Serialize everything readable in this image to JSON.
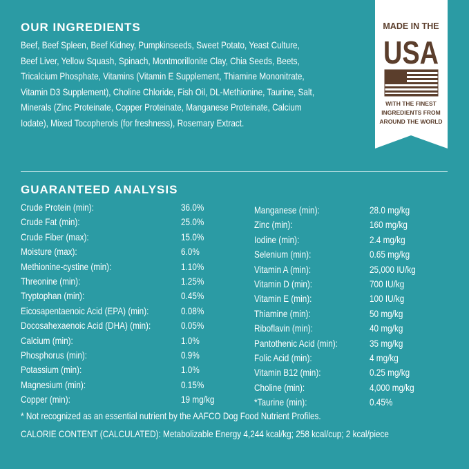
{
  "ingredients": {
    "title": "OUR INGREDIENTS",
    "lines": [
      "Beef, Beef Spleen, Beef Kidney, Pumpkinseeds, Sweet Potato, Yeast Culture,",
      "Beef Liver, Yellow Squash, Spinach, Montmorillonite Clay, Chia Seeds, Beets,",
      "Tricalcium Phosphate, Vitamins (Vitamin E Supplement, Thiamine Mononitrate,",
      "Vitamin D3 Supplement), Choline Chloride, Fish Oil, DL-Methionine, Taurine, Salt,",
      "Minerals (Zinc Proteinate, Copper Proteinate, Manganese Proteinate, Calcium",
      "Iodate), Mixed Tocopherols (for freshness), Rosemary Extract."
    ]
  },
  "badge": {
    "top": "MADE IN THE",
    "country": "USA",
    "lines": [
      "WITH THE FINEST",
      "INGREDIENTS FROM",
      "AROUND THE WORLD"
    ]
  },
  "analysis": {
    "title": "GUARANTEED ANALYSIS",
    "left": [
      [
        "Crude Protein (min):",
        "36.0%"
      ],
      [
        "Crude Fat (min):",
        "25.0%"
      ],
      [
        "Crude Fiber (max):",
        "15.0%"
      ],
      [
        "Moisture (max):",
        "6.0%"
      ],
      [
        "Methionine-cystine (min):",
        "1.10%"
      ],
      [
        "Threonine (min):",
        "1.25%"
      ],
      [
        "Tryptophan (min):",
        "0.45%"
      ],
      [
        "Eicosapentaenoic Acid (EPA) (min):",
        "0.08%"
      ],
      [
        "Docosahexaenoic Acid (DHA) (min):",
        "0.05%"
      ],
      [
        "Calcium (min):",
        "1.0%"
      ],
      [
        "Phosphorus (min):",
        "0.9%"
      ],
      [
        "Potassium (min):",
        "1.0%"
      ],
      [
        "Magnesium (min):",
        "0.15%"
      ],
      [
        "Copper (min):",
        "19 mg/kg"
      ]
    ],
    "right": [
      [
        "Manganese (min):",
        "28.0 mg/kg"
      ],
      [
        "Zinc (min):",
        "160 mg/kg"
      ],
      [
        "Iodine (min):",
        "2.4 mg/kg"
      ],
      [
        "Selenium  (min):",
        "0.65 mg/kg"
      ],
      [
        "Vitamin A (min):",
        "25,000 IU/kg"
      ],
      [
        "Vitamin D (min):",
        "700 IU/kg"
      ],
      [
        "Vitamin E (min):",
        "100 IU/kg"
      ],
      [
        "Thiamine (min):",
        "50 mg/kg"
      ],
      [
        "Riboflavin (min):",
        "40 mg/kg"
      ],
      [
        "Pantothenic Acid (min):",
        "35 mg/kg"
      ],
      [
        "Folic Acid (min):",
        "4 mg/kg"
      ],
      [
        "Vitamin B12 (min):",
        "0.25 mg/kg"
      ],
      [
        "Choline (min):",
        "4,000 mg/kg"
      ],
      [
        "*Taurine (min):",
        "0.45%"
      ]
    ],
    "footnote": "* Not recognized as an essential nutrient by the AAFCO Dog Food Nutrient Profiles.",
    "calories": "CALORIE CONTENT (CALCULATED): Metabolizable Energy 4,244 kcal/kg; 258 kcal/cup; 2 kcal/piece"
  }
}
